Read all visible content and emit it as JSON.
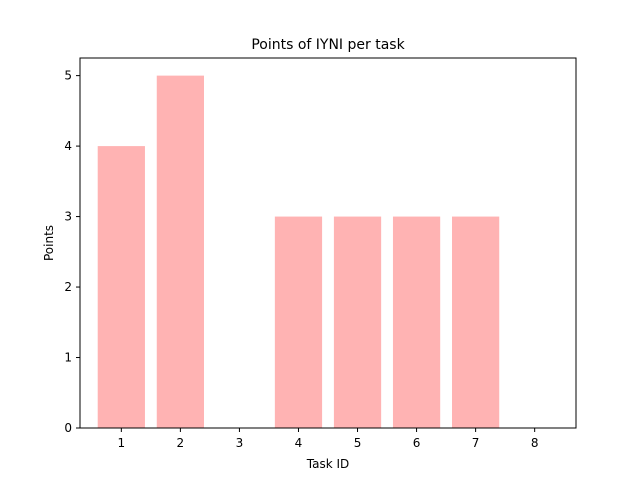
{
  "chart_data": {
    "type": "bar",
    "title": "Points of IYNI per task",
    "xlabel": "Task ID",
    "ylabel": "Points",
    "categories": [
      "1",
      "2",
      "3",
      "4",
      "5",
      "6",
      "7",
      "8"
    ],
    "values": [
      4,
      5,
      0,
      3,
      3,
      3,
      3,
      0
    ],
    "ylim": [
      0,
      5.25
    ],
    "yticks": [
      0,
      1,
      2,
      3,
      4,
      5
    ],
    "grid": false,
    "bar_color": "#ffb3b3"
  }
}
